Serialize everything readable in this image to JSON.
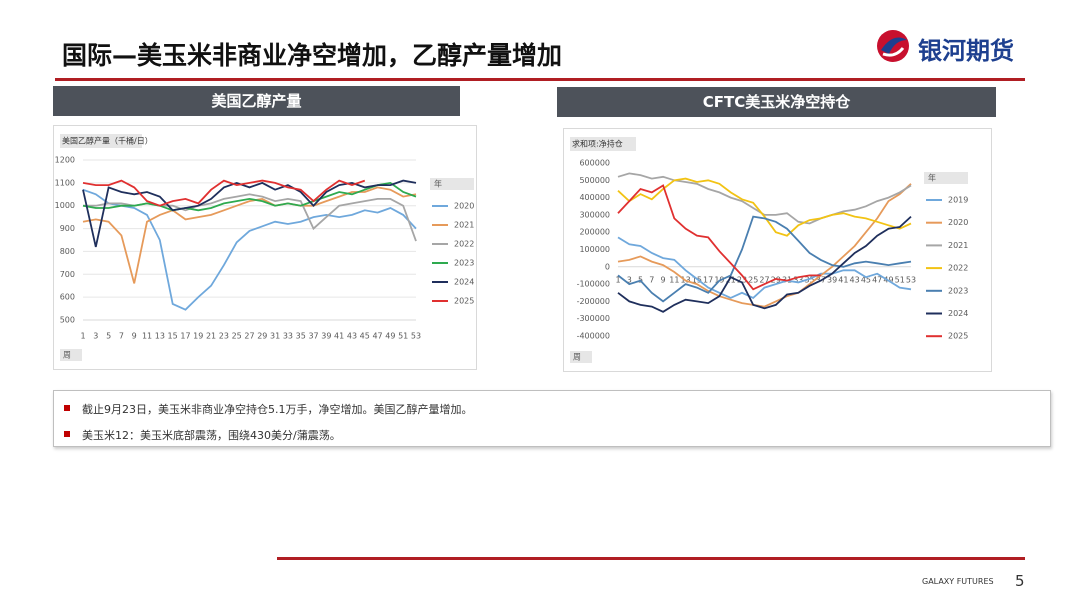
{
  "header": {
    "title": "国际—美玉米非商业净空增加，乙醇产量增加",
    "logo": "银河期货"
  },
  "panels": [
    "美国乙醇产量",
    "CFTC美玉米净空持仓"
  ],
  "bullets": [
    "截止9月23日，美玉米非商业净空持仓5.1万手，净空增加。美国乙醇产量增加。",
    "美玉米12：美玉米底部震荡，围绕430美分/蒲震荡。"
  ],
  "footer": {
    "brand": "GALAXY FUTURES",
    "page": "5"
  },
  "chart_data": [
    {
      "type": "line",
      "title": "美国乙醇产量（千桶/日）",
      "legend_title": "年",
      "filter_label": "周",
      "legend": "right",
      "x": [
        1,
        3,
        5,
        7,
        9,
        11,
        13,
        15,
        17,
        19,
        21,
        23,
        25,
        27,
        29,
        31,
        33,
        35,
        37,
        39,
        41,
        43,
        45,
        47,
        49,
        51,
        53
      ],
      "xlim": [
        1,
        53
      ],
      "xticks": [
        1,
        3,
        5,
        7,
        9,
        11,
        13,
        15,
        17,
        19,
        21,
        23,
        25,
        27,
        29,
        31,
        33,
        35,
        37,
        39,
        41,
        43,
        45,
        47,
        49,
        51,
        53
      ],
      "ylim": [
        500,
        1200
      ],
      "yticks": [
        500,
        600,
        700,
        800,
        900,
        1000,
        1100,
        1200
      ],
      "grid": true,
      "series": [
        {
          "name": "2020",
          "color": "#6fa8dc",
          "values": [
            1070,
            1050,
            1010,
            1000,
            990,
            960,
            850,
            570,
            545,
            600,
            650,
            740,
            840,
            890,
            910,
            930,
            920,
            930,
            950,
            960,
            950,
            960,
            980,
            970,
            990,
            960,
            900
          ]
        },
        {
          "name": "2021",
          "color": "#e69a5a",
          "values": [
            930,
            940,
            930,
            870,
            660,
            930,
            960,
            980,
            940,
            950,
            960,
            980,
            1000,
            1020,
            1030,
            1000,
            1010,
            1000,
            1000,
            1020,
            1040,
            1060,
            1060,
            1080,
            1070,
            1040,
            1050
          ]
        },
        {
          "name": "2022",
          "color": "#a6a6a6",
          "values": [
            1000,
            1000,
            1010,
            1010,
            1000,
            1010,
            1000,
            1000,
            980,
            1000,
            1010,
            1030,
            1040,
            1050,
            1040,
            1020,
            1030,
            1020,
            900,
            950,
            1000,
            1010,
            1020,
            1030,
            1030,
            1000,
            845
          ]
        },
        {
          "name": "2023",
          "color": "#2eaa4f",
          "values": [
            1000,
            990,
            990,
            1000,
            1000,
            1010,
            1000,
            980,
            990,
            980,
            990,
            1010,
            1020,
            1030,
            1020,
            1000,
            1010,
            1000,
            1020,
            1040,
            1060,
            1050,
            1070,
            1090,
            1100,
            1060,
            1040
          ]
        },
        {
          "name": "2024",
          "color": "#1f2f5c",
          "values": [
            1070,
            820,
            1080,
            1060,
            1050,
            1060,
            1040,
            980,
            990,
            1000,
            1030,
            1080,
            1100,
            1080,
            1100,
            1070,
            1090,
            1060,
            1000,
            1060,
            1090,
            1100,
            1080,
            1090,
            1090,
            1110,
            1100
          ]
        },
        {
          "name": "2025",
          "color": "#e03030",
          "values": [
            1100,
            1090,
            1090,
            1110,
            1080,
            1020,
            1000,
            1020,
            1030,
            1010,
            1070,
            1110,
            1090,
            1100,
            1110,
            1100,
            1080,
            1070,
            1020,
            1070,
            1110,
            1090,
            1110,
            null,
            null,
            null,
            null
          ]
        }
      ]
    },
    {
      "type": "line",
      "title": "求和项:净持仓",
      "legend_title": "年",
      "filter_label": "周",
      "legend": "right",
      "x": [
        1,
        3,
        5,
        7,
        9,
        11,
        13,
        15,
        17,
        19,
        21,
        23,
        25,
        27,
        29,
        31,
        33,
        35,
        37,
        39,
        41,
        43,
        45,
        47,
        49,
        51,
        53
      ],
      "xlim": [
        1,
        53
      ],
      "xticks": [
        1,
        3,
        5,
        7,
        9,
        11,
        13,
        15,
        17,
        19,
        21,
        23,
        25,
        27,
        29,
        31,
        33,
        35,
        37,
        39,
        41,
        43,
        45,
        47,
        49,
        51,
        53
      ],
      "ylim": [
        -400000,
        600000
      ],
      "yticks": [
        -400000,
        -300000,
        -200000,
        -100000,
        0,
        100000,
        200000,
        300000,
        400000,
        500000,
        600000
      ],
      "grid": false,
      "series": [
        {
          "name": "2019",
          "color": "#6fa8dc",
          "values": [
            170000,
            130000,
            120000,
            80000,
            50000,
            40000,
            -20000,
            -70000,
            -120000,
            -150000,
            -180000,
            -150000,
            -180000,
            -120000,
            -100000,
            -80000,
            -90000,
            -70000,
            -40000,
            -40000,
            -20000,
            -20000,
            -60000,
            -40000,
            -80000,
            -120000,
            -130000
          ]
        },
        {
          "name": "2020",
          "color": "#e69a5a",
          "values": [
            30000,
            40000,
            60000,
            30000,
            10000,
            -30000,
            -80000,
            -100000,
            -140000,
            -170000,
            -190000,
            -210000,
            -220000,
            -230000,
            -200000,
            -170000,
            -150000,
            -100000,
            -50000,
            0,
            60000,
            120000,
            200000,
            280000,
            380000,
            420000,
            480000
          ]
        },
        {
          "name": "2021",
          "color": "#a6a6a6",
          "values": [
            520000,
            540000,
            530000,
            510000,
            520000,
            500000,
            490000,
            480000,
            450000,
            430000,
            400000,
            380000,
            340000,
            300000,
            300000,
            310000,
            260000,
            250000,
            280000,
            300000,
            320000,
            330000,
            350000,
            380000,
            400000,
            430000,
            470000
          ]
        },
        {
          "name": "2022",
          "color": "#f2c314",
          "values": [
            440000,
            380000,
            420000,
            390000,
            450000,
            500000,
            510000,
            490000,
            500000,
            480000,
            430000,
            390000,
            370000,
            290000,
            200000,
            180000,
            240000,
            270000,
            280000,
            300000,
            310000,
            290000,
            280000,
            260000,
            240000,
            220000,
            250000
          ]
        },
        {
          "name": "2023",
          "color": "#4a7fb0",
          "values": [
            -50000,
            -100000,
            -80000,
            -150000,
            -200000,
            -150000,
            -100000,
            -120000,
            -150000,
            -80000,
            -50000,
            100000,
            290000,
            280000,
            260000,
            220000,
            150000,
            80000,
            40000,
            10000,
            0,
            20000,
            30000,
            20000,
            10000,
            20000,
            30000
          ]
        },
        {
          "name": "2024",
          "color": "#1f2f5c",
          "values": [
            -150000,
            -200000,
            -220000,
            -230000,
            -260000,
            -220000,
            -190000,
            -200000,
            -210000,
            -170000,
            -60000,
            -90000,
            -220000,
            -240000,
            -220000,
            -160000,
            -150000,
            -110000,
            -80000,
            -40000,
            20000,
            80000,
            120000,
            180000,
            220000,
            230000,
            290000
          ]
        },
        {
          "name": "2025",
          "color": "#e03030",
          "values": [
            310000,
            380000,
            450000,
            430000,
            470000,
            280000,
            220000,
            180000,
            170000,
            90000,
            20000,
            -50000,
            -130000,
            -100000,
            -70000,
            -80000,
            -60000,
            -50000,
            -50000,
            null,
            null,
            null,
            null,
            null,
            null,
            null,
            null
          ]
        }
      ]
    }
  ]
}
